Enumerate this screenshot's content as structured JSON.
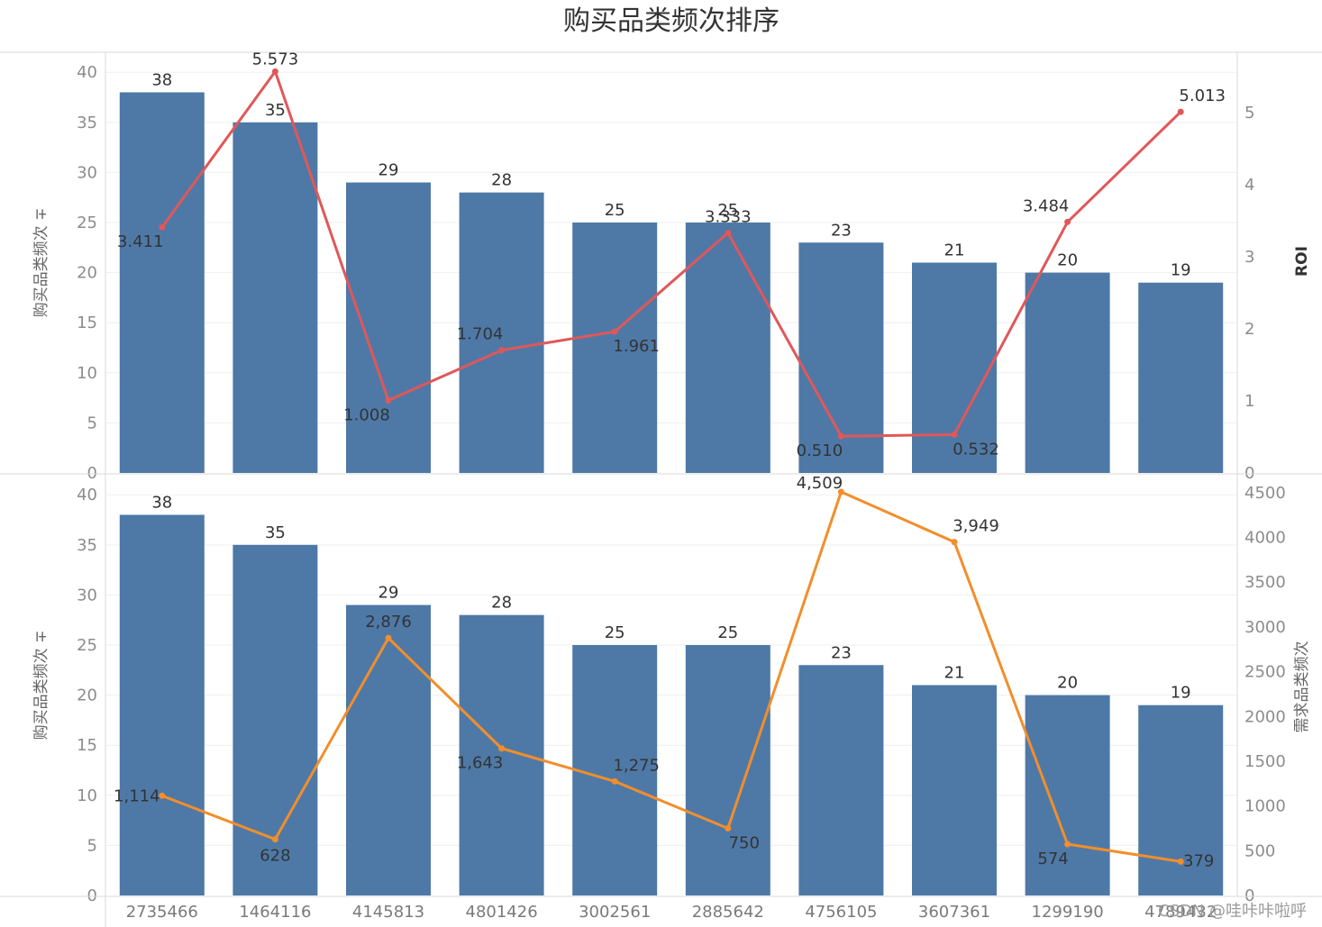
{
  "title": "购买品类频次排序",
  "watermark": "CSDN @哇咔咔啦呼",
  "colors": {
    "bar": "#4e79a7",
    "roi_line": "#e15759",
    "demand_line": "#f28e2b"
  },
  "chart_data": [
    {
      "type": "bar",
      "categories": [
        "2735466",
        "1464116",
        "4145813",
        "4801426",
        "3002561",
        "2885642",
        "4756105",
        "3607361",
        "1299190",
        "4789432"
      ],
      "values": [
        38,
        35,
        29,
        28,
        25,
        25,
        23,
        21,
        20,
        19
      ],
      "ylabel": "购买品类频次 ∓",
      "ylim": [
        0,
        42
      ],
      "yticks": [
        0,
        5,
        10,
        15,
        20,
        25,
        30,
        35,
        40
      ],
      "series": [
        {
          "values": [
            38,
            35,
            29,
            28,
            25,
            25,
            23,
            21,
            20,
            19
          ]
        },
        {
          "name": "ROI",
          "type": "line",
          "axis": "right",
          "values": [
            3.411,
            5.573,
            1.008,
            1.704,
            1.961,
            3.333,
            0.51,
            0.532,
            3.484,
            5.013
          ],
          "labels": [
            "3.411",
            "5.573",
            "1.008",
            "1.704",
            "1.961",
            "3.333",
            "0.510",
            "0.532",
            "3.484",
            "5.013"
          ]
        }
      ],
      "y2label": "ROI",
      "y2lim": [
        0,
        5.84
      ],
      "y2ticks": [
        0,
        1,
        2,
        3,
        4,
        5
      ],
      "grid": true
    },
    {
      "type": "bar",
      "categories": [
        "2735466",
        "1464116",
        "4145813",
        "4801426",
        "3002561",
        "2885642",
        "4756105",
        "3607361",
        "1299190",
        "4789432"
      ],
      "values": [
        38,
        35,
        29,
        28,
        25,
        25,
        23,
        21,
        20,
        19
      ],
      "ylabel": "购买品类频次 ∓",
      "ylim": [
        0,
        42
      ],
      "yticks": [
        0,
        5,
        10,
        15,
        20,
        25,
        30,
        35,
        40
      ],
      "series": [
        {
          "values": [
            38,
            35,
            29,
            28,
            25,
            25,
            23,
            21,
            20,
            19
          ]
        },
        {
          "name": "需求品类频次",
          "type": "line",
          "axis": "right",
          "values": [
            1114,
            628,
            2876,
            1643,
            1275,
            750,
            4509,
            3949,
            574,
            379
          ],
          "labels": [
            "1,114",
            "628",
            "2,876",
            "1,643",
            "1,275",
            "750",
            "4,509",
            "3,949",
            "574",
            "379"
          ]
        }
      ],
      "y2label": "需求品类频次",
      "y2lim": [
        0,
        4700
      ],
      "y2ticks": [
        0,
        500,
        1000,
        1500,
        2000,
        2500,
        3000,
        3500,
        4000,
        4500
      ],
      "grid": true
    }
  ]
}
